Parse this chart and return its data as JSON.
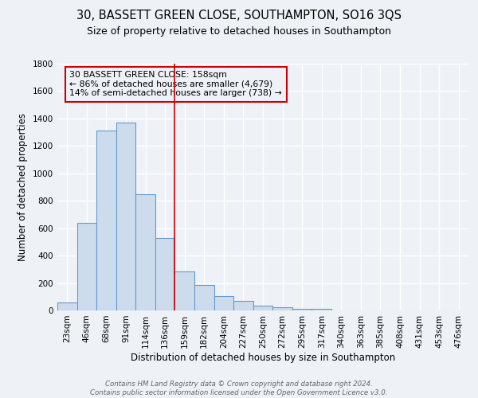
{
  "title": "30, BASSETT GREEN CLOSE, SOUTHAMPTON, SO16 3QS",
  "subtitle": "Size of property relative to detached houses in Southampton",
  "xlabel": "Distribution of detached houses by size in Southampton",
  "ylabel": "Number of detached properties",
  "bar_labels": [
    "23sqm",
    "46sqm",
    "68sqm",
    "91sqm",
    "114sqm",
    "136sqm",
    "159sqm",
    "182sqm",
    "204sqm",
    "227sqm",
    "250sqm",
    "272sqm",
    "295sqm",
    "317sqm",
    "340sqm",
    "363sqm",
    "385sqm",
    "408sqm",
    "431sqm",
    "453sqm",
    "476sqm"
  ],
  "bar_values": [
    60,
    640,
    1310,
    1370,
    850,
    530,
    285,
    185,
    105,
    70,
    35,
    25,
    10,
    10,
    0,
    0,
    0,
    0,
    0,
    0,
    0
  ],
  "bar_color": "#ccdcec",
  "bar_edge_color": "#6699cc",
  "ylim": [
    0,
    1800
  ],
  "yticks": [
    0,
    200,
    400,
    600,
    800,
    1000,
    1200,
    1400,
    1600,
    1800
  ],
  "vline_x": 6,
  "vline_color": "#cc0000",
  "annotation_line1": "30 BASSETT GREEN CLOSE: 158sqm",
  "annotation_line2": "← 86% of detached houses are smaller (4,679)",
  "annotation_line3": "14% of semi-detached houses are larger (738) →",
  "footer_line1": "Contains HM Land Registry data © Crown copyright and database right 2024.",
  "footer_line2": "Contains public sector information licensed under the Open Government Licence v3.0.",
  "background_color": "#eef2f7",
  "grid_color": "#ffffff",
  "title_fontsize": 10.5,
  "subtitle_fontsize": 9,
  "axis_label_fontsize": 8.5,
  "tick_fontsize": 7.5,
  "annotation_fontsize": 7.8,
  "footer_fontsize": 6.2
}
